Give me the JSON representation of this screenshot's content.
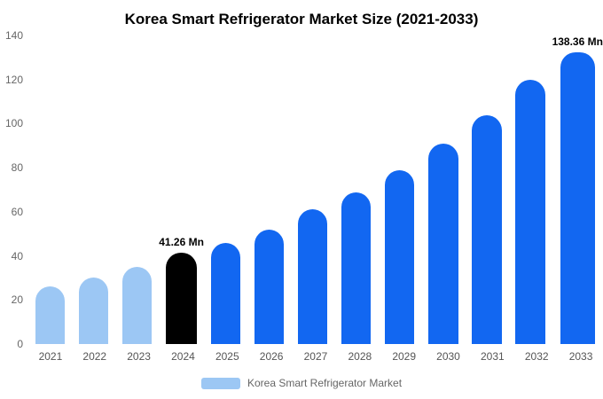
{
  "chart_data": {
    "type": "bar",
    "title": "Korea Smart Refrigerator Market Size (2021-2033)",
    "categories": [
      "2021",
      "2022",
      "2023",
      "2024",
      "2025",
      "2026",
      "2027",
      "2028",
      "2029",
      "2030",
      "2031",
      "2032",
      "2033"
    ],
    "values": [
      26,
      30,
      35,
      41.26,
      46,
      52,
      61,
      69,
      79,
      91,
      104,
      120,
      138.36
    ],
    "bar_colors": [
      "#9CC7F4",
      "#9CC7F4",
      "#9CC7F4",
      "#000000",
      "#1267F1",
      "#1267F1",
      "#1267F1",
      "#1267F1",
      "#1267F1",
      "#1267F1",
      "#1267F1",
      "#1267F1",
      "#1267F1"
    ],
    "annotations": [
      {
        "index": 3,
        "text": "41.26 Mn"
      },
      {
        "index": 12,
        "text": "138.36 Mn"
      }
    ],
    "y_ticks": [
      0,
      20,
      40,
      60,
      80,
      100,
      120,
      140
    ],
    "ylim": [
      0,
      140
    ],
    "xlabel": "",
    "ylabel": "",
    "grid": false,
    "legend_position": "bottom",
    "legend": [
      {
        "label": "Korea Smart Refrigerator Market",
        "color": "#9CC7F4"
      }
    ]
  }
}
